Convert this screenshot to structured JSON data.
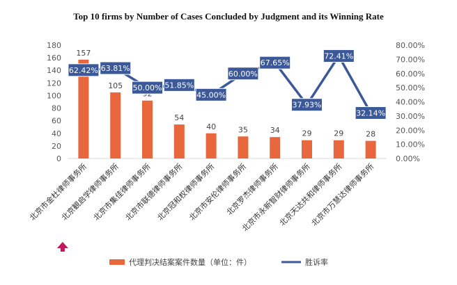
{
  "chart_data": {
    "type": "bar",
    "title": "Top 10 firms by Number of Cases Concluded by Judgment and its Winning Rate",
    "categories": [
      "北京市金杜律师事务所",
      "北京観启学律师事务所",
      "北京市集佳律师事务所",
      "北京市联德律师事务所",
      "北京冠和权律师事务所",
      "北京市安伦律师事务所",
      "北京罗杰律师事务所",
      "北京市永新智财律师事务所",
      "北京天达共和律师事务所",
      "北京市万慧达律师事务所"
    ],
    "series": [
      {
        "name": "代理判决结案案件数量（单位：件）",
        "type": "bar",
        "axis": "left",
        "values": [
          157,
          105,
          92,
          54,
          40,
          35,
          34,
          29,
          29,
          28
        ],
        "labels": [
          "157",
          "105",
          "92",
          "54",
          "40",
          "35",
          "34",
          "29",
          "29",
          "28"
        ]
      },
      {
        "name": "胜诉率",
        "type": "line",
        "axis": "right",
        "values": [
          62.42,
          63.81,
          50.0,
          51.85,
          45.0,
          60.0,
          67.65,
          37.93,
          72.41,
          32.14
        ],
        "labels": [
          "62.42%",
          "63.81%",
          "50.00%",
          "51.85%",
          "45.00%",
          "60.00%",
          "67.65%",
          "37.93%",
          "72.41%",
          "32.14%"
        ]
      }
    ],
    "ylim": [
      0,
      180
    ],
    "y_ticks": [
      "0",
      "20",
      "40",
      "60",
      "80",
      "100",
      "120",
      "140",
      "160",
      "180"
    ],
    "y2lim": [
      0,
      80
    ],
    "y2_ticks": [
      "0.00%",
      "10.00%",
      "20.00%",
      "30.00%",
      "40.00%",
      "50.00%",
      "60.00%",
      "70.00%",
      "80.00%"
    ],
    "grid": false,
    "legend": "bottom",
    "colors": {
      "bar": "#E8673C",
      "line": "#3B5998",
      "label_box": "#3B5998",
      "arrow": "#C2185B"
    }
  }
}
